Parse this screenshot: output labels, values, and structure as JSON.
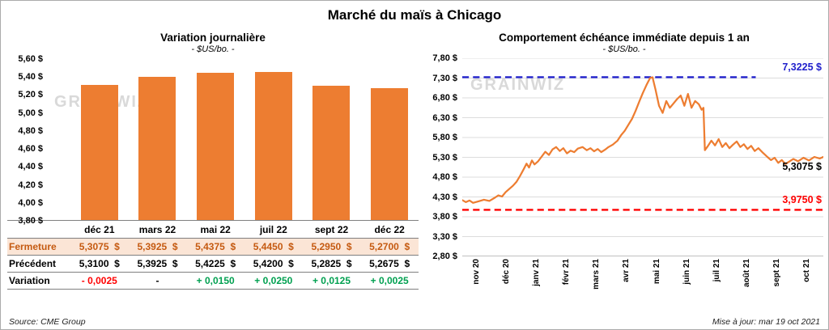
{
  "page": {
    "title": "Marché du maïs à Chicago",
    "source": "Source: CME Group",
    "updated": "Mise à jour: mar 19 oct 2021",
    "watermark": "grainwiz"
  },
  "colors": {
    "bar_orange": "#ED7D31",
    "line_orange": "#ED7D31",
    "ref_max_blue": "#2222CC",
    "ref_min_red": "#FF0000",
    "fermeture_bg": "#FBE5D6",
    "fermeture_text": "#C55A11",
    "positive_green": "#00A050",
    "negative_red": "#FF0000",
    "grid_gray": "#DCDCDC",
    "border_gray": "#7F7F7F",
    "watermark_gray": "#D9D9D9"
  },
  "chart_data": [
    {
      "type": "bar",
      "title": "Variation  journalière",
      "subtitle": "- $US/bo. -",
      "categories": [
        "déc 21",
        "mars 22",
        "mai 22",
        "juil 22",
        "sept 22",
        "déc 22"
      ],
      "values": [
        5.3075,
        5.3925,
        5.4375,
        5.445,
        5.295,
        5.27
      ],
      "ylim": [
        3.8,
        5.6
      ],
      "ytick_step": 0.2,
      "ytick_labels": [
        "5,60 $",
        "5,40 $",
        "5,20 $",
        "5,00 $",
        "4,80 $",
        "4,60 $",
        "4,40 $",
        "4,20 $",
        "4,00 $",
        "3,80 $"
      ],
      "bar_color": "#ED7D31",
      "grid": false,
      "table": {
        "rows": [
          {
            "key": "fermeture",
            "label": "Fermeture",
            "values": [
              "5,3075  $",
              "5,3925  $",
              "5,4375  $",
              "5,4450  $",
              "5,2950  $",
              "5,2700  $"
            ]
          },
          {
            "key": "precedent",
            "label": "Précédent",
            "values": [
              "5,3100  $",
              "5,3925  $",
              "5,4225  $",
              "5,4200  $",
              "5,2825  $",
              "5,2675  $"
            ]
          },
          {
            "key": "variation",
            "label": "Variation",
            "values": [
              "- 0,0025",
              "-",
              "+ 0,0150",
              "+ 0,0250",
              "+ 0,0125",
              "+ 0,0025"
            ],
            "styles": [
              "negative",
              "plain",
              "positive",
              "positive",
              "positive",
              "positive"
            ]
          }
        ]
      }
    },
    {
      "type": "line",
      "title": "Comportement  échéance  immédiate  depuis 1 an",
      "subtitle": "- $US/bo. -",
      "x_labels": [
        "nov 20",
        "déc 20",
        "janv 21",
        "févr 21",
        "mars 21",
        "avr 21",
        "mai 21",
        "juin 21",
        "juil 21",
        "août 21",
        "sept 21",
        "oct 21"
      ],
      "ylim": [
        2.8,
        7.8
      ],
      "ytick_step": 0.5,
      "ytick_labels": [
        "7,80 $",
        "7,30 $",
        "6,80 $",
        "6,30 $",
        "5,80 $",
        "5,30 $",
        "4,80 $",
        "4,30 $",
        "3,80 $",
        "3,30 $",
        "2,80 $"
      ],
      "grid": true,
      "series": [
        {
          "name": "échéance immédiate",
          "color": "#ED7D31",
          "points": [
            [
              0,
              4.22
            ],
            [
              0.01,
              4.17
            ],
            [
              0.02,
              4.21
            ],
            [
              0.03,
              4.15
            ],
            [
              0.045,
              4.19
            ],
            [
              0.06,
              4.23
            ],
            [
              0.075,
              4.2
            ],
            [
              0.09,
              4.28
            ],
            [
              0.1,
              4.34
            ],
            [
              0.11,
              4.31
            ],
            [
              0.12,
              4.42
            ],
            [
              0.13,
              4.5
            ],
            [
              0.14,
              4.58
            ],
            [
              0.15,
              4.68
            ],
            [
              0.16,
              4.83
            ],
            [
              0.17,
              5.0
            ],
            [
              0.178,
              5.14
            ],
            [
              0.185,
              5.04
            ],
            [
              0.193,
              5.22
            ],
            [
              0.2,
              5.12
            ],
            [
              0.21,
              5.2
            ],
            [
              0.22,
              5.32
            ],
            [
              0.23,
              5.44
            ],
            [
              0.24,
              5.36
            ],
            [
              0.25,
              5.5
            ],
            [
              0.26,
              5.56
            ],
            [
              0.27,
              5.46
            ],
            [
              0.28,
              5.53
            ],
            [
              0.29,
              5.4
            ],
            [
              0.3,
              5.47
            ],
            [
              0.31,
              5.43
            ],
            [
              0.32,
              5.52
            ],
            [
              0.333,
              5.56
            ],
            [
              0.345,
              5.48
            ],
            [
              0.355,
              5.53
            ],
            [
              0.365,
              5.45
            ],
            [
              0.375,
              5.51
            ],
            [
              0.385,
              5.43
            ],
            [
              0.395,
              5.49
            ],
            [
              0.405,
              5.56
            ],
            [
              0.417,
              5.62
            ],
            [
              0.43,
              5.72
            ],
            [
              0.44,
              5.86
            ],
            [
              0.45,
              5.97
            ],
            [
              0.46,
              6.12
            ],
            [
              0.47,
              6.27
            ],
            [
              0.48,
              6.47
            ],
            [
              0.49,
              6.7
            ],
            [
              0.5,
              6.92
            ],
            [
              0.51,
              7.12
            ],
            [
              0.52,
              7.3
            ],
            [
              0.527,
              7.32
            ],
            [
              0.535,
              7.02
            ],
            [
              0.545,
              6.6
            ],
            [
              0.555,
              6.42
            ],
            [
              0.565,
              6.72
            ],
            [
              0.575,
              6.55
            ],
            [
              0.585,
              6.66
            ],
            [
              0.595,
              6.77
            ],
            [
              0.605,
              6.86
            ],
            [
              0.615,
              6.6
            ],
            [
              0.625,
              6.9
            ],
            [
              0.635,
              6.55
            ],
            [
              0.645,
              6.72
            ],
            [
              0.655,
              6.64
            ],
            [
              0.663,
              6.5
            ],
            [
              0.668,
              6.55
            ],
            [
              0.672,
              5.48
            ],
            [
              0.68,
              5.58
            ],
            [
              0.69,
              5.72
            ],
            [
              0.7,
              5.6
            ],
            [
              0.71,
              5.76
            ],
            [
              0.72,
              5.56
            ],
            [
              0.73,
              5.66
            ],
            [
              0.74,
              5.53
            ],
            [
              0.75,
              5.62
            ],
            [
              0.76,
              5.7
            ],
            [
              0.77,
              5.56
            ],
            [
              0.78,
              5.63
            ],
            [
              0.79,
              5.51
            ],
            [
              0.8,
              5.59
            ],
            [
              0.81,
              5.46
            ],
            [
              0.82,
              5.53
            ],
            [
              0.833,
              5.41
            ],
            [
              0.845,
              5.31
            ],
            [
              0.855,
              5.23
            ],
            [
              0.865,
              5.29
            ],
            [
              0.875,
              5.16
            ],
            [
              0.885,
              5.23
            ],
            [
              0.895,
              5.13
            ],
            [
              0.905,
              5.19
            ],
            [
              0.917,
              5.26
            ],
            [
              0.93,
              5.2
            ],
            [
              0.945,
              5.29
            ],
            [
              0.96,
              5.22
            ],
            [
              0.975,
              5.31
            ],
            [
              0.99,
              5.27
            ],
            [
              1,
              5.31
            ]
          ]
        }
      ],
      "reference_lines": [
        {
          "value": 7.3225,
          "label": "7,3225 $",
          "color": "#2222CC",
          "style": "dashed",
          "span": "partial"
        },
        {
          "value": 3.975,
          "label": "3,9750 $",
          "color": "#FF0000",
          "style": "dashed",
          "span": "full"
        }
      ],
      "end_label": {
        "value": 5.3075,
        "label": "5,3075 $"
      }
    }
  ]
}
